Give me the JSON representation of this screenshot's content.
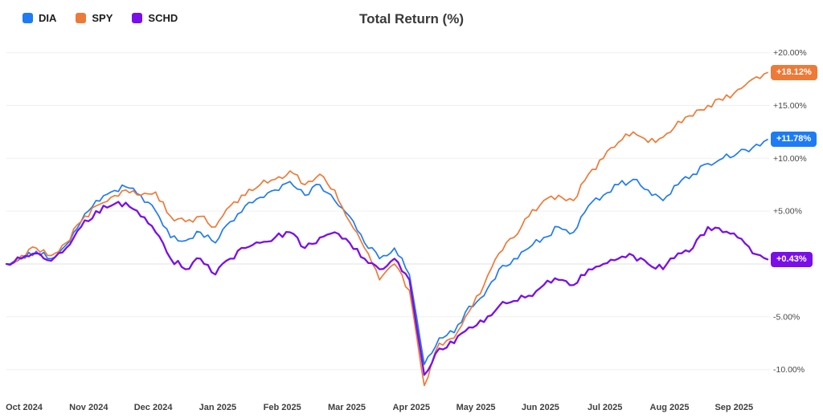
{
  "title": "Total Return (%)",
  "legend": {
    "items": [
      {
        "label": "DIA",
        "color": "#1e7bf5"
      },
      {
        "label": "SPY",
        "color": "#ee7a38"
      },
      {
        "label": "SCHD",
        "color": "#7a0fe9"
      }
    ]
  },
  "chart_data": {
    "type": "line",
    "title": "Total Return (%)",
    "ylabel": "Total Return (%)",
    "x_unit": "weekly samples, Oct 2024 - Sep 2025",
    "grid": "horizontal",
    "legend_position": "top-left",
    "ylim": [
      -13,
      21
    ],
    "y_gridlines": [
      20,
      15,
      10,
      5,
      0,
      -5,
      -10
    ],
    "y_tick_labels": [
      {
        "value": 20,
        "label": "+20.00%"
      },
      {
        "value": 15,
        "label": "+15.00%"
      },
      {
        "value": 10,
        "label": "+10.00%"
      },
      {
        "value": 5,
        "label": "+5.00%"
      },
      {
        "value": -5,
        "label": "-5.00%"
      },
      {
        "value": -10,
        "label": "-10.00%"
      }
    ],
    "x_tick_labels": [
      "Oct 2024",
      "Nov 2024",
      "Dec 2024",
      "Jan 2025",
      "Feb 2025",
      "Mar 2025",
      "Apr 2025",
      "May 2025",
      "Jun 2025",
      "Jul 2025",
      "Aug 2025",
      "Sep 2025"
    ],
    "series": [
      {
        "name": "DIA",
        "color": "#1e7bf5",
        "end_label": "+11.78%",
        "end_value": 11.78,
        "values": [
          0,
          0.6,
          1.2,
          0.5,
          1.8,
          4.0,
          6.0,
          6.8,
          7.3,
          6.5,
          5.0,
          2.5,
          2.2,
          3.0,
          2.0,
          4.0,
          5.5,
          6.3,
          7.0,
          7.8,
          6.5,
          7.5,
          6.0,
          4.5,
          2.0,
          0.5,
          1.5,
          -1.0,
          -9.5,
          -7.0,
          -6.5,
          -4.0,
          -3.0,
          -0.5,
          0.5,
          1.5,
          2.5,
          3.5,
          3.0,
          5.5,
          6.5,
          7.5,
          8.0,
          7.0,
          6.0,
          7.5,
          8.5,
          9.5,
          10.0,
          10.5,
          11.0,
          11.78
        ]
      },
      {
        "name": "SPY",
        "color": "#ee7a38",
        "end_label": "+18.12%",
        "end_value": 18.12,
        "values": [
          0,
          0.8,
          1.5,
          0.8,
          2.0,
          4.0,
          5.5,
          6.3,
          7.0,
          6.5,
          6.8,
          4.5,
          4.0,
          4.5,
          3.5,
          5.5,
          6.5,
          7.5,
          8.0,
          8.8,
          7.5,
          8.5,
          7.0,
          4.0,
          1.5,
          -1.5,
          0.0,
          -2.5,
          -11.5,
          -7.5,
          -7.0,
          -4.5,
          -2.0,
          1.0,
          2.5,
          4.5,
          6.0,
          6.5,
          6.0,
          8.5,
          10.0,
          11.5,
          12.5,
          11.5,
          12.0,
          13.5,
          14.0,
          15.0,
          15.5,
          16.5,
          17.5,
          18.12
        ]
      },
      {
        "name": "SCHD",
        "color": "#7a0fe9",
        "end_label": "+0.43%",
        "end_value": 0.43,
        "values": [
          0,
          0.5,
          1.0,
          0.3,
          1.5,
          3.5,
          5.0,
          5.5,
          5.8,
          4.5,
          3.0,
          0.5,
          -0.5,
          0.5,
          -1.0,
          0.5,
          1.5,
          2.0,
          2.5,
          3.0,
          1.5,
          2.5,
          3.0,
          2.0,
          0.5,
          -0.5,
          0.5,
          -1.5,
          -10.5,
          -8.0,
          -7.5,
          -6.0,
          -5.5,
          -4.0,
          -3.5,
          -3.0,
          -2.0,
          -1.5,
          -2.0,
          -0.5,
          0.0,
          0.5,
          0.8,
          0.0,
          -0.5,
          1.0,
          1.5,
          3.5,
          3.0,
          2.5,
          1.0,
          0.43
        ]
      }
    ]
  }
}
